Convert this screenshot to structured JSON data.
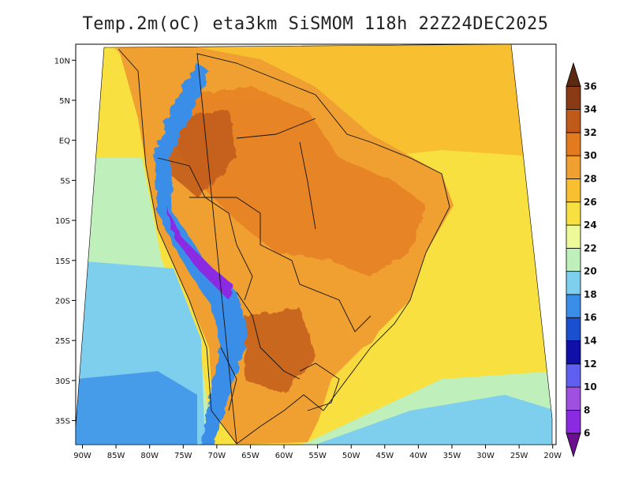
{
  "title": "Temp.2m(oC) eta3km SiSMOM 118h 22Z24DEC2025",
  "variable": "Temp.2m(oC)",
  "model": "eta3km",
  "run": "SiSMOM",
  "lead": "118h",
  "valid": "22Z24DEC2025",
  "map": {
    "lon_range": [
      -91,
      -19.5
    ],
    "lat_range": [
      -38,
      12
    ],
    "lon_ticks": [
      "90W",
      "85W",
      "80W",
      "75W",
      "70W",
      "65W",
      "60W",
      "55W",
      "50W",
      "45W",
      "40W",
      "35W",
      "30W",
      "25W",
      "20W"
    ],
    "lon_tick_values": [
      -90,
      -85,
      -80,
      -75,
      -70,
      -65,
      -60,
      -55,
      -50,
      -45,
      -40,
      -35,
      -30,
      -25,
      -20
    ],
    "lat_ticks": [
      "10N",
      "5N",
      "EQ",
      "5S",
      "10S",
      "15S",
      "20S",
      "25S",
      "30S",
      "35S"
    ],
    "lat_tick_values": [
      10,
      5,
      0,
      -5,
      -10,
      -15,
      -20,
      -25,
      -30,
      -35
    ]
  },
  "colorbar": {
    "labels": [
      "6",
      "8",
      "10",
      "12",
      "14",
      "16",
      "18",
      "20",
      "22",
      "24",
      "26",
      "28",
      "30",
      "32",
      "34",
      "36"
    ],
    "colors": [
      "#6a0f8e",
      "#8a2be2",
      "#a050e0",
      "#6060f0",
      "#1010a8",
      "#1a4fd0",
      "#3a8ee8",
      "#7ecfee",
      "#bff0bb",
      "#eefa9a",
      "#f8e040",
      "#f8c030",
      "#f0a030",
      "#e47a20",
      "#c05a1a",
      "#8a3a14",
      "#5a2a10"
    ],
    "levels": [
      6,
      8,
      10,
      12,
      14,
      16,
      18,
      20,
      22,
      24,
      26,
      28,
      30,
      32,
      34,
      36
    ]
  }
}
